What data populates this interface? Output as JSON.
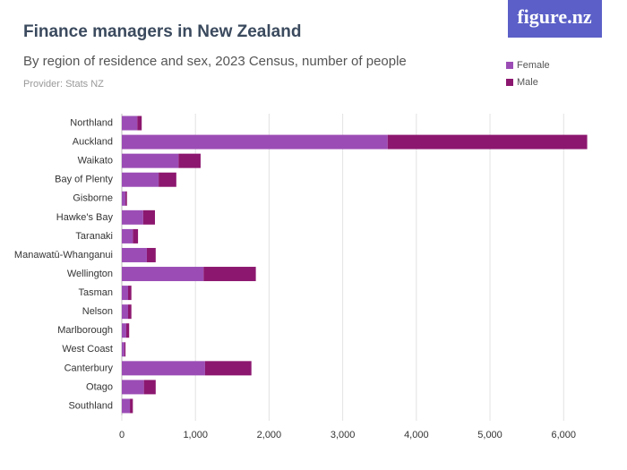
{
  "logo": "figure.nz",
  "chart_data": {
    "type": "stacked_barh",
    "title": "Finance managers in New Zealand",
    "subtitle": "By region of residence and sex, 2023 Census, number of people",
    "provider": "Provider: Stats NZ",
    "categories": [
      "Northland",
      "Auckland",
      "Waikato",
      "Bay of Plenty",
      "Gisborne",
      "Hawke's Bay",
      "Taranaki",
      "Manawatū-Whanganui",
      "Wellington",
      "Tasman",
      "Nelson",
      "Marlborough",
      "West Coast",
      "Canterbury",
      "Otago",
      "Southland"
    ],
    "series": [
      {
        "name": "Female",
        "color": "#9b4db5",
        "values": [
          210,
          3610,
          770,
          500,
          50,
          290,
          150,
          340,
          1110,
          85,
          85,
          60,
          35,
          1130,
          300,
          110
        ]
      },
      {
        "name": "Male",
        "color": "#8c176f",
        "values": [
          60,
          2710,
          300,
          240,
          20,
          160,
          70,
          120,
          710,
          45,
          45,
          40,
          15,
          630,
          160,
          40
        ]
      }
    ],
    "xlim": [
      0,
      6520
    ],
    "xticks": [
      0,
      {
        "value": 1000,
        "label": "1,000"
      },
      {
        "value": 2000,
        "label": "2,000"
      },
      {
        "value": 3000,
        "label": "3,000"
      },
      {
        "value": 4000,
        "label": "4,000"
      },
      {
        "value": 5000,
        "label": "5,000"
      },
      {
        "value": 6000,
        "label": "6,000"
      }
    ],
    "grid": true,
    "legend": "top-right"
  }
}
